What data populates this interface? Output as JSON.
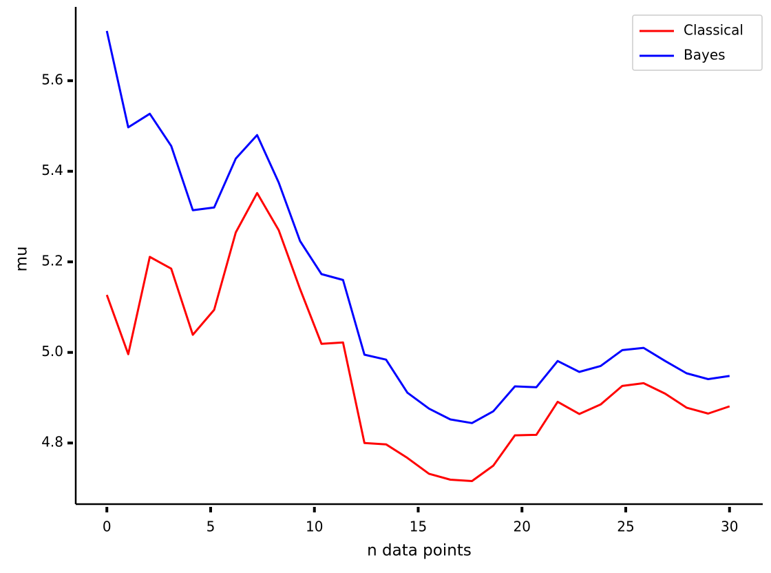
{
  "chart_data": {
    "type": "line",
    "xlabel": "n data points",
    "ylabel": "mu",
    "x": [
      0,
      1.03,
      2.07,
      3.1,
      4.14,
      5.17,
      6.21,
      7.24,
      8.28,
      9.31,
      10.34,
      11.38,
      12.41,
      13.45,
      14.48,
      15.52,
      16.55,
      17.59,
      18.62,
      19.66,
      20.69,
      21.72,
      22.76,
      23.79,
      24.83,
      25.86,
      26.9,
      27.93,
      28.97,
      30
    ],
    "series": [
      {
        "name": "Classical",
        "color": "#ff0000",
        "values": [
          5.127,
          4.996,
          5.211,
          5.185,
          5.039,
          5.094,
          5.265,
          5.352,
          5.27,
          5.14,
          5.019,
          5.022,
          4.8,
          4.797,
          4.767,
          4.732,
          4.719,
          4.716,
          4.75,
          4.817,
          4.818,
          4.891,
          4.864,
          4.885,
          4.926,
          4.932,
          4.909,
          4.878,
          4.865,
          4.881
        ]
      },
      {
        "name": "Bayes",
        "color": "#0000ff",
        "values": [
          5.71,
          5.497,
          5.527,
          5.456,
          5.314,
          5.32,
          5.428,
          5.48,
          5.375,
          5.246,
          5.173,
          5.16,
          4.995,
          4.984,
          4.911,
          4.876,
          4.852,
          4.844,
          4.87,
          4.925,
          4.923,
          4.981,
          4.957,
          4.97,
          5.005,
          5.01,
          4.981,
          4.954,
          4.941,
          4.948
        ]
      }
    ],
    "xlim": [
      -1.5,
      31.6
    ],
    "ylim": [
      4.665,
      5.763
    ],
    "xticks": [
      0,
      5,
      10,
      15,
      20,
      25,
      30
    ],
    "yticks": [
      4.8,
      {
        "value": 5,
        "label": "5.0"
      },
      5.2,
      5.4,
      5.6
    ],
    "grid": false,
    "legend": "upper right"
  }
}
